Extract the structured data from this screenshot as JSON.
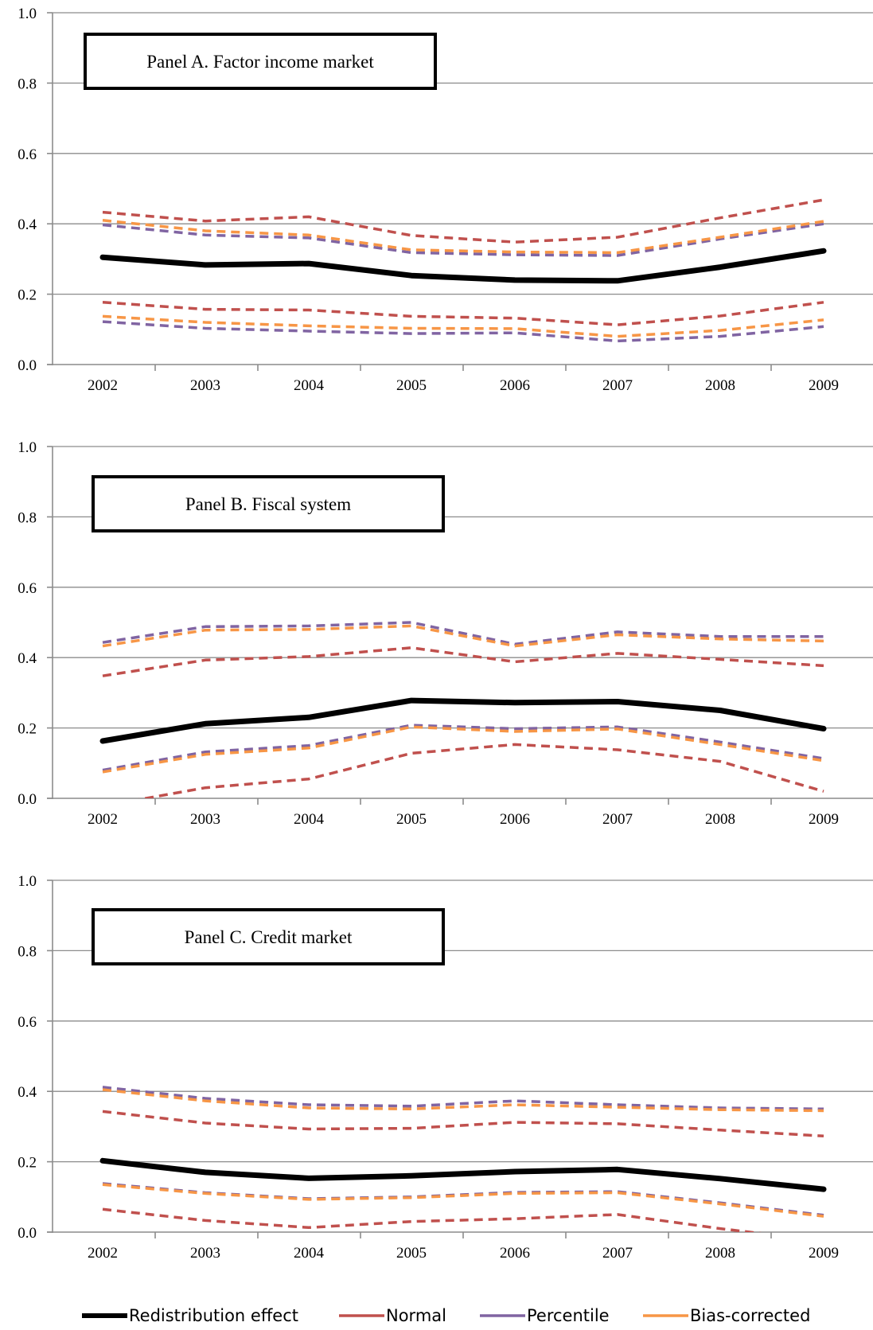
{
  "legend": {
    "redistribution": "Redistribution effect",
    "normal": "Normal",
    "percentile": "Percentile",
    "bias": "Bias-corrected"
  },
  "colors": {
    "redistribution": "#000000",
    "normal": "#C0504D",
    "percentile": "#8064A2",
    "bias": "#F79646"
  },
  "chart_data": [
    {
      "type": "line",
      "title": "Panel A. Factor income market",
      "categories": [
        "2002",
        "2003",
        "2004",
        "2005",
        "2006",
        "2007",
        "2008",
        "2009"
      ],
      "ylim": [
        0,
        1
      ],
      "yticks": [
        "0.0",
        "0.2",
        "0.4",
        "0.6",
        "0.8",
        "1.0"
      ],
      "grid": true,
      "series": [
        {
          "key": "redistribution",
          "values": [
            0.305,
            0.283,
            0.287,
            0.253,
            0.24,
            0.238,
            0.277,
            0.323
          ]
        },
        {
          "key": "normal_upper",
          "values": [
            0.433,
            0.408,
            0.42,
            0.367,
            0.348,
            0.362,
            0.417,
            0.468
          ]
        },
        {
          "key": "bias_upper",
          "values": [
            0.41,
            0.38,
            0.368,
            0.326,
            0.32,
            0.318,
            0.362,
            0.407
          ]
        },
        {
          "key": "percentile_upper",
          "values": [
            0.397,
            0.368,
            0.36,
            0.318,
            0.312,
            0.31,
            0.357,
            0.4
          ]
        },
        {
          "key": "normal_lower",
          "values": [
            0.177,
            0.157,
            0.155,
            0.137,
            0.132,
            0.113,
            0.138,
            0.177
          ]
        },
        {
          "key": "bias_lower",
          "values": [
            0.137,
            0.12,
            0.11,
            0.103,
            0.102,
            0.08,
            0.097,
            0.127
          ]
        },
        {
          "key": "percentile_lower",
          "values": [
            0.122,
            0.103,
            0.095,
            0.088,
            0.09,
            0.067,
            0.08,
            0.108
          ]
        }
      ]
    },
    {
      "type": "line",
      "title": "Panel B. Fiscal system",
      "categories": [
        "2002",
        "2003",
        "2004",
        "2005",
        "2006",
        "2007",
        "2008",
        "2009"
      ],
      "ylim": [
        0,
        1
      ],
      "yticks": [
        "0.0",
        "0.2",
        "0.4",
        "0.6",
        "0.8",
        "1.0"
      ],
      "grid": true,
      "series": [
        {
          "key": "redistribution",
          "values": [
            0.163,
            0.212,
            0.23,
            0.278,
            0.272,
            0.275,
            0.25,
            0.198
          ]
        },
        {
          "key": "normal_upper",
          "values": [
            0.348,
            0.393,
            0.403,
            0.428,
            0.388,
            0.412,
            0.395,
            0.377
          ]
        },
        {
          "key": "bias_upper",
          "values": [
            0.433,
            0.478,
            0.48,
            0.49,
            0.433,
            0.465,
            0.453,
            0.447
          ]
        },
        {
          "key": "percentile_upper",
          "values": [
            0.443,
            0.488,
            0.49,
            0.5,
            0.438,
            0.473,
            0.46,
            0.46
          ]
        },
        {
          "key": "normal_lower",
          "values": [
            -0.022,
            0.03,
            0.055,
            0.128,
            0.153,
            0.138,
            0.105,
            0.02
          ]
        },
        {
          "key": "bias_lower",
          "values": [
            0.075,
            0.125,
            0.143,
            0.203,
            0.19,
            0.197,
            0.153,
            0.107
          ]
        },
        {
          "key": "percentile_lower",
          "values": [
            0.08,
            0.132,
            0.15,
            0.208,
            0.198,
            0.203,
            0.16,
            0.113
          ]
        }
      ]
    },
    {
      "type": "line",
      "title": "Panel C. Credit market",
      "categories": [
        "2002",
        "2003",
        "2004",
        "2005",
        "2006",
        "2007",
        "2008",
        "2009"
      ],
      "ylim": [
        0,
        1
      ],
      "yticks": [
        "0.0",
        "0.2",
        "0.4",
        "0.6",
        "0.8",
        "1.0"
      ],
      "grid": true,
      "series": [
        {
          "key": "redistribution",
          "values": [
            0.203,
            0.17,
            0.153,
            0.16,
            0.172,
            0.178,
            0.152,
            0.122
          ]
        },
        {
          "key": "normal_upper",
          "values": [
            0.343,
            0.31,
            0.293,
            0.295,
            0.312,
            0.308,
            0.29,
            0.273
          ]
        },
        {
          "key": "bias_upper",
          "values": [
            0.405,
            0.373,
            0.353,
            0.35,
            0.362,
            0.355,
            0.348,
            0.345
          ]
        },
        {
          "key": "percentile_upper",
          "values": [
            0.412,
            0.38,
            0.362,
            0.358,
            0.373,
            0.362,
            0.353,
            0.35
          ]
        },
        {
          "key": "normal_lower",
          "values": [
            0.065,
            0.033,
            0.013,
            0.03,
            0.038,
            0.05,
            0.01,
            -0.025
          ]
        },
        {
          "key": "bias_lower",
          "values": [
            0.135,
            0.11,
            0.093,
            0.098,
            0.11,
            0.112,
            0.08,
            0.045
          ]
        },
        {
          "key": "percentile_lower",
          "values": [
            0.138,
            0.112,
            0.095,
            0.1,
            0.113,
            0.115,
            0.083,
            0.048
          ]
        }
      ]
    }
  ]
}
